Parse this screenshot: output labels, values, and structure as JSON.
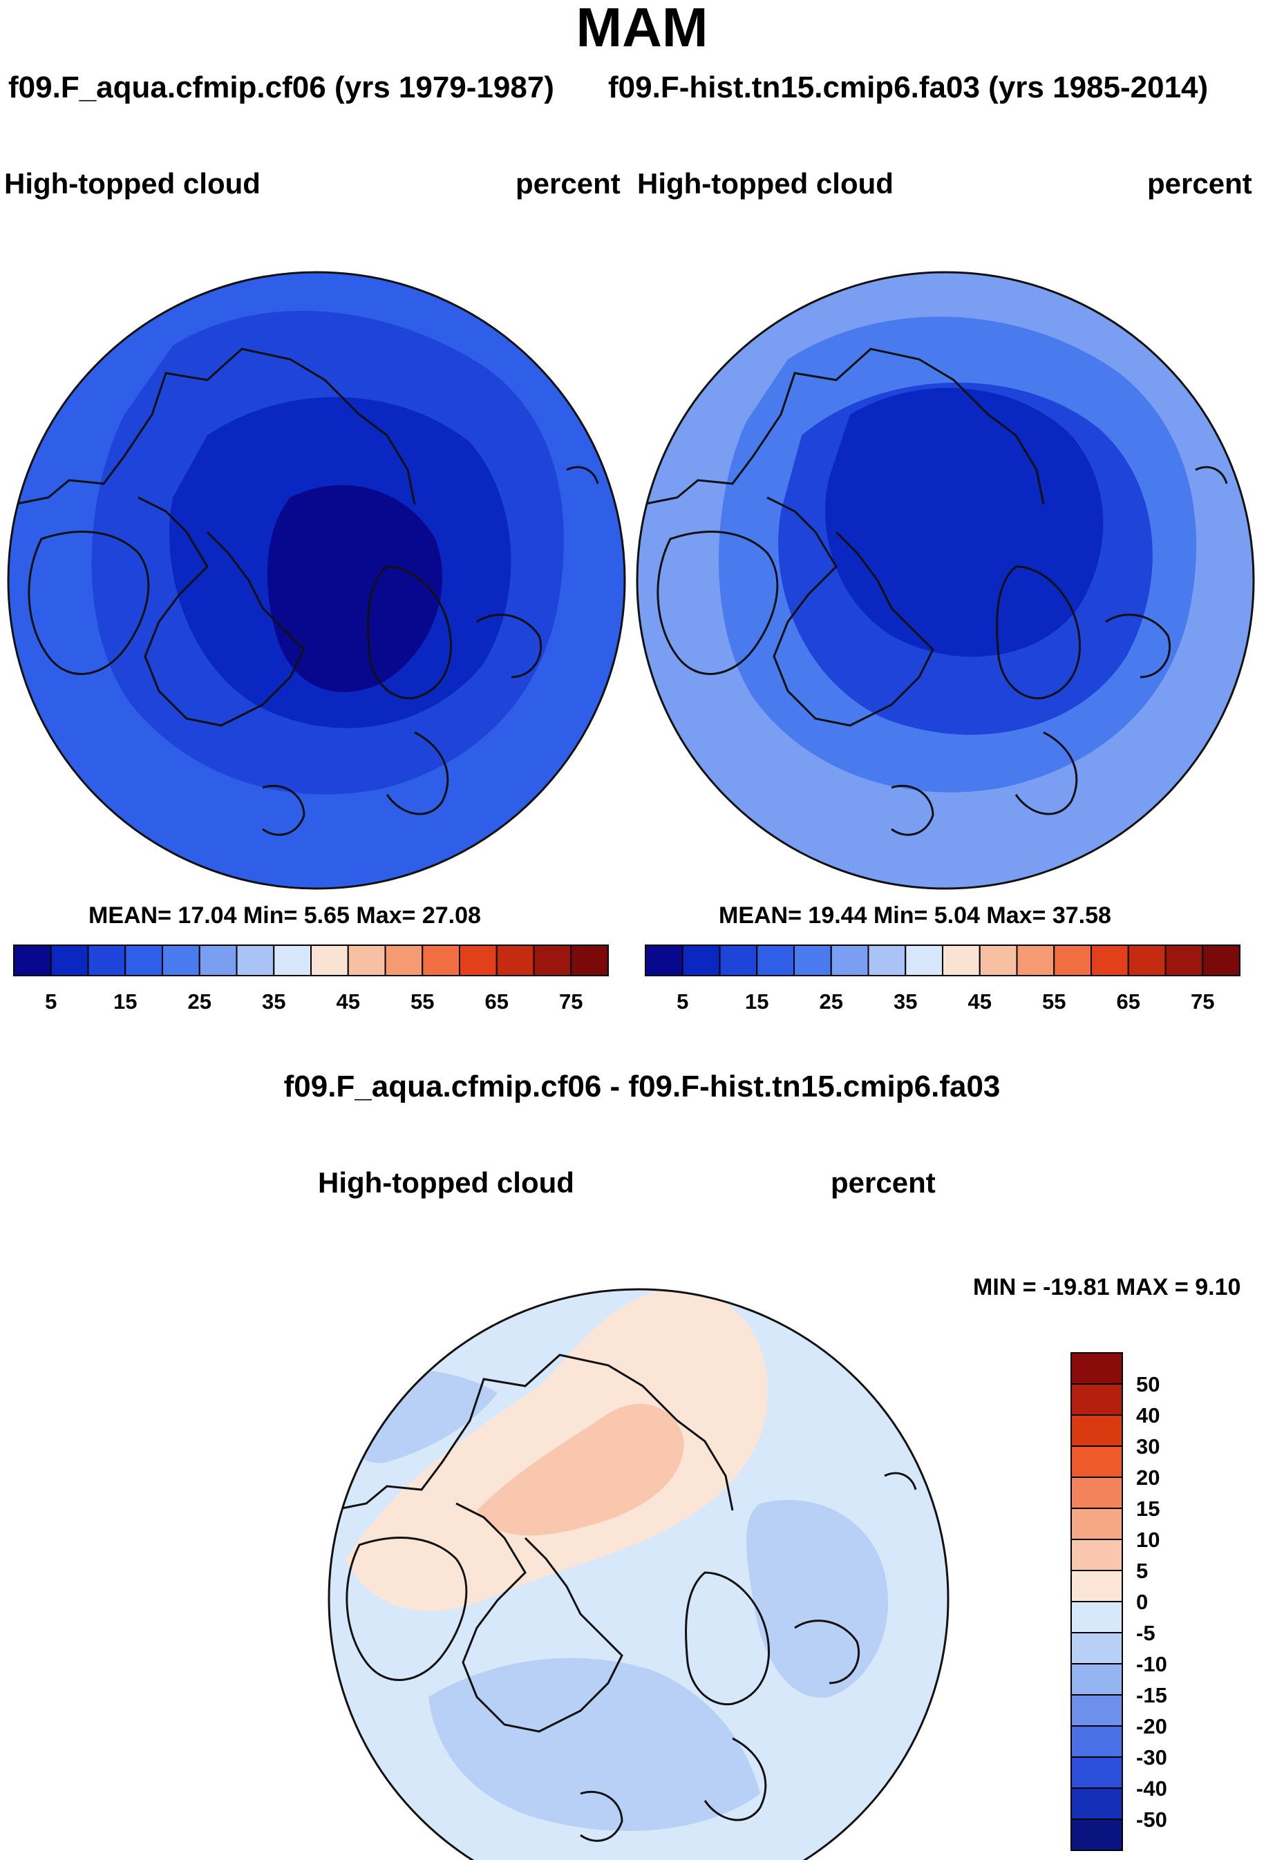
{
  "figure": {
    "season": "MAM",
    "case_a_title": "f09.F_aqua.cfmip.cf06 (yrs 1979-1987)",
    "case_b_title": "f09.F-hist.tn15.cmip6.fa03 (yrs 1985-2014)",
    "diff_title": "f09.F_aqua.cfmip.cf06 - f09.F-hist.tn15.cmip6.fa03"
  },
  "panels": {
    "a": {
      "variable": "High-topped cloud",
      "units": "percent",
      "stats": "MEAN=  17.04  Min=   5.65  Max=  27.08"
    },
    "b": {
      "variable": "High-topped cloud",
      "units": "percent",
      "stats": "MEAN=  19.44  Min=   5.04  Max=  37.58"
    },
    "diff": {
      "variable": "High-topped cloud",
      "units": "percent",
      "stats": "MIN = -19.81 MAX =   9.10"
    }
  },
  "chart_data": [
    {
      "type": "heatmap",
      "projection": "north-polar-stereographic",
      "title": "f09.F_aqua.cfmip.cf06 (yrs 1979-1987)",
      "variable": "High-topped cloud",
      "units": "percent",
      "mean": 17.04,
      "min": 5.65,
      "max": 27.08,
      "colorbar_levels": [
        5,
        10,
        15,
        20,
        25,
        30,
        35,
        40,
        45,
        50,
        55,
        60,
        65,
        70,
        75
      ],
      "colorbar_tick_labels": [
        "5",
        "15",
        "25",
        "35",
        "45",
        "55",
        "65",
        "75"
      ],
      "colorbar_colors": [
        "#08088f",
        "#0a27c2",
        "#1f44d9",
        "#2f5fe8",
        "#4a7bee",
        "#7a9ff2",
        "#a9c3f7",
        "#d7e6fb",
        "#fbe3d3",
        "#f8c0a2",
        "#f59a72",
        "#f06e42",
        "#e2401b",
        "#c42b10",
        "#99150d",
        "#7a0a0a"
      ],
      "map_fills": {
        "outer": "#2f5fe8",
        "ring2": "#1f44d9",
        "core": "#0a27c2",
        "deep": "#08088f"
      }
    },
    {
      "type": "heatmap",
      "projection": "north-polar-stereographic",
      "title": "f09.F-hist.tn15.cmip6.fa03 (yrs 1985-2014)",
      "variable": "High-topped cloud",
      "units": "percent",
      "mean": 19.44,
      "min": 5.04,
      "max": 37.58,
      "colorbar_levels": [
        5,
        10,
        15,
        20,
        25,
        30,
        35,
        40,
        45,
        50,
        55,
        60,
        65,
        70,
        75
      ],
      "colorbar_tick_labels": [
        "5",
        "15",
        "25",
        "35",
        "45",
        "55",
        "65",
        "75"
      ],
      "colorbar_colors": [
        "#08088f",
        "#0a27c2",
        "#1f44d9",
        "#2f5fe8",
        "#4a7bee",
        "#7a9ff2",
        "#a9c3f7",
        "#d7e6fb",
        "#fbe3d3",
        "#f8c0a2",
        "#f59a72",
        "#f06e42",
        "#e2401b",
        "#c42b10",
        "#99150d",
        "#7a0a0a"
      ],
      "map_fills": {
        "outer": "#7a9ff2",
        "ring2": "#4a7bee",
        "core": "#1f44d9",
        "deep": "#0a27c2"
      }
    },
    {
      "type": "heatmap",
      "projection": "north-polar-stereographic",
      "title": "f09.F_aqua.cfmip.cf06 - f09.F-hist.tn15.cmip6.fa03",
      "variable": "High-topped cloud",
      "units": "percent",
      "min": -19.81,
      "max": 9.1,
      "colorbar_levels": [
        50,
        40,
        30,
        20,
        15,
        10,
        5,
        0,
        -5,
        -10,
        -15,
        -20,
        -30,
        -40,
        -50
      ],
      "colorbar_tick_labels": [
        "50",
        "40",
        "30",
        "20",
        "15",
        "10",
        "5",
        "0",
        "-5",
        "-10",
        "-15",
        "-20",
        "-30",
        "-40",
        "-50"
      ],
      "colorbar_colors": [
        "#8b0a0a",
        "#b5200e",
        "#d93a10",
        "#ee5a2a",
        "#f3835a",
        "#f6a783",
        "#f8c7ad",
        "#fbe5d6",
        "#d8e8fb",
        "#b8d0f6",
        "#94b3f1",
        "#6c90ec",
        "#4a70e6",
        "#2b4fdb",
        "#1530b8",
        "#0a1480"
      ],
      "map_fills": {
        "outer": "#d8e8fb",
        "pos": "#fbe5d6",
        "pos2": "#f8c7ad",
        "neg": "#b8d0f6"
      }
    }
  ]
}
